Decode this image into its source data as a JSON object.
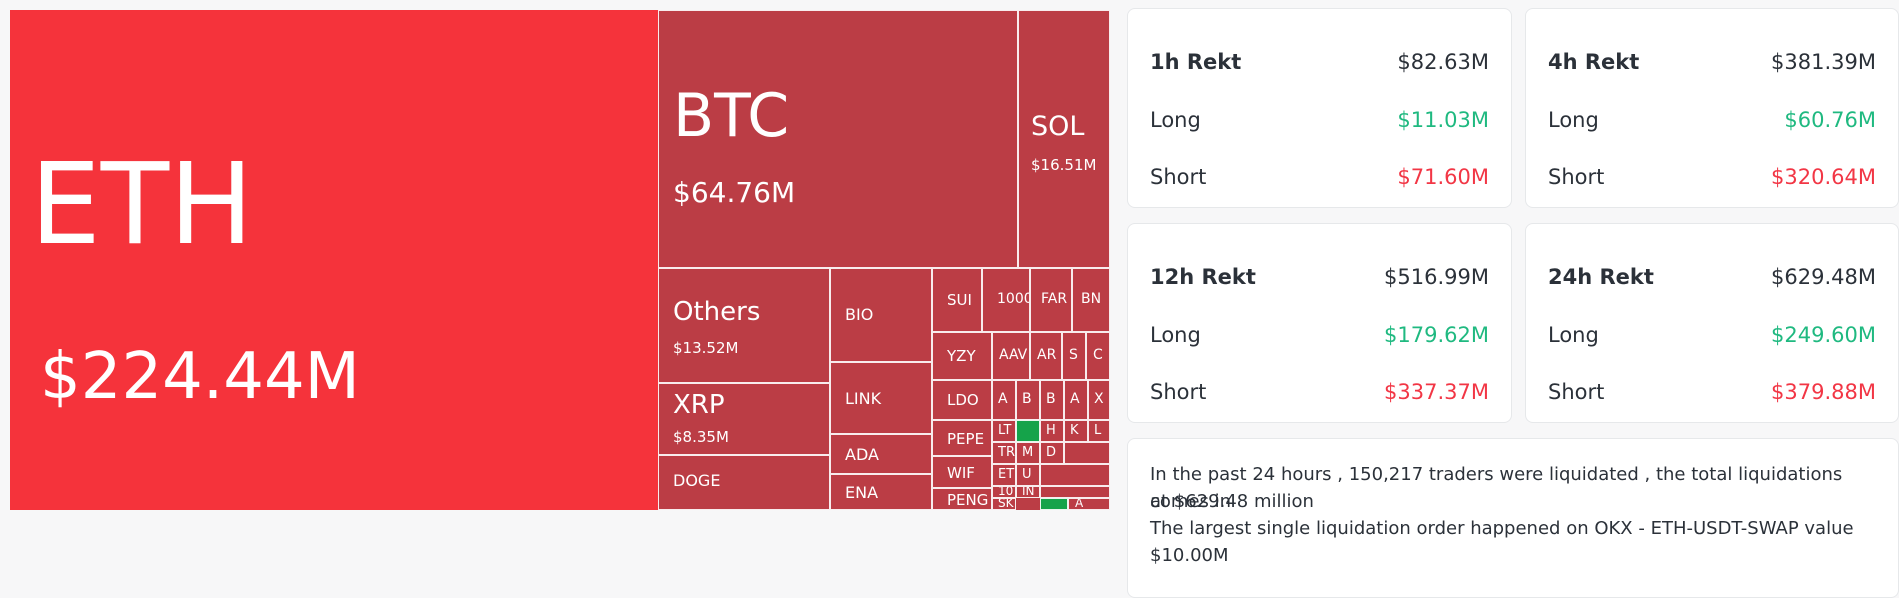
{
  "treemap": {
    "eth": {
      "symbol": "ETH",
      "value": "$224.44M"
    },
    "btc": {
      "symbol": "BTC",
      "value": "$64.76M"
    },
    "sol": {
      "symbol": "SOL",
      "value": "$16.51M"
    },
    "others": {
      "symbol": "Others",
      "value": "$13.52M"
    },
    "xrp": {
      "symbol": "XRP",
      "value": "$8.35M"
    },
    "small_labels": [
      "DOGE",
      "BIO",
      "LINK",
      "ADA",
      "ENA",
      "SUI",
      "1000",
      "FAR",
      "BN",
      "YZY",
      "AAV",
      "AR",
      "S",
      "C",
      "LDO",
      "A",
      "B",
      "B",
      "A",
      "X",
      "PEPE",
      "LT",
      "H",
      "K",
      "L",
      "WIF",
      "TR",
      "M",
      "D",
      "ET",
      "U",
      "PENG",
      "10",
      "IN",
      "SK",
      "A"
    ]
  },
  "cards": [
    {
      "title": "1h Rekt",
      "total": "$82.63M",
      "long_label": "Long",
      "long": "$11.03M",
      "short_label": "Short",
      "short": "$71.60M"
    },
    {
      "title": "4h Rekt",
      "total": "$381.39M",
      "long_label": "Long",
      "long": "$60.76M",
      "short_label": "Short",
      "short": "$320.64M"
    },
    {
      "title": "12h Rekt",
      "total": "$516.99M",
      "long_label": "Long",
      "long": "$179.62M",
      "short_label": "Short",
      "short": "$337.37M"
    },
    {
      "title": "24h Rekt",
      "total": "$629.48M",
      "long_label": "Long",
      "long": "$249.60M",
      "short_label": "Short",
      "short": "$379.88M"
    }
  ],
  "summary": {
    "line1": "In the past 24 hours , 150,217 traders were liquidated , the total liquidations comes in",
    "line2": "at $629.48 million",
    "line3": "The largest single liquidation order happened on OKX - ETH-USDT-SWAP value",
    "line4": "$10.00M"
  }
}
